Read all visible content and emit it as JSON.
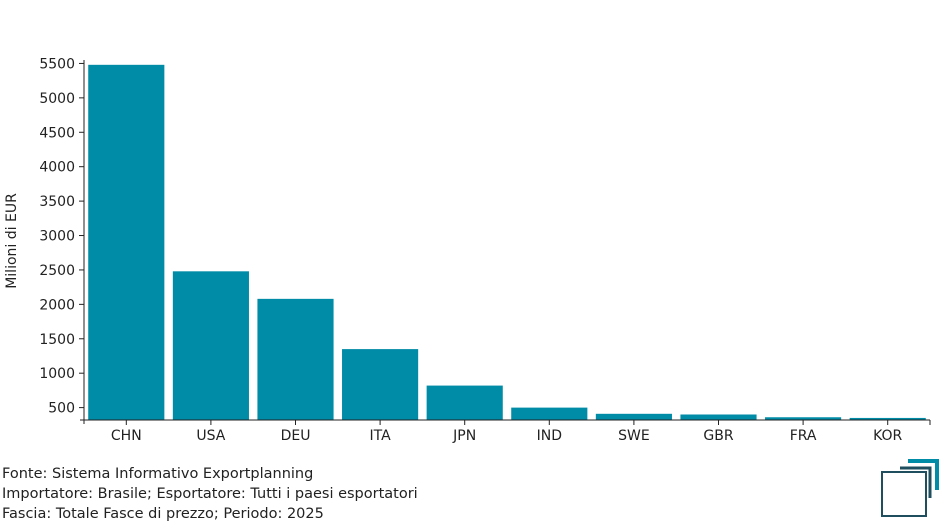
{
  "chart_data": {
    "type": "bar",
    "categories": [
      "CHN",
      "USA",
      "DEU",
      "ITA",
      "JPN",
      "IND",
      "SWE",
      "GBR",
      "FRA",
      "KOR"
    ],
    "values": [
      5480,
      2480,
      2080,
      1350,
      820,
      500,
      410,
      400,
      360,
      350
    ],
    "ylabel": "Milioni di EUR",
    "xlabel": "",
    "ylim": [
      320,
      5550
    ],
    "yticks": [
      500,
      1000,
      1500,
      2000,
      2500,
      3000,
      3500,
      4000,
      4500,
      5000,
      5500
    ],
    "bar_color": "#008ba6",
    "grid": false
  },
  "footer": {
    "source": "Fonte: Sistema Informativo Exportplanning",
    "importer": "Importatore: Brasile; Esportatore: Tutti i paesi esportatori",
    "range": "Fascia: Totale Fasce di prezzo; Periodo: 2025"
  },
  "colors": {
    "logo_dark": "#1f4e5f",
    "logo_accent": "#008ba6"
  }
}
